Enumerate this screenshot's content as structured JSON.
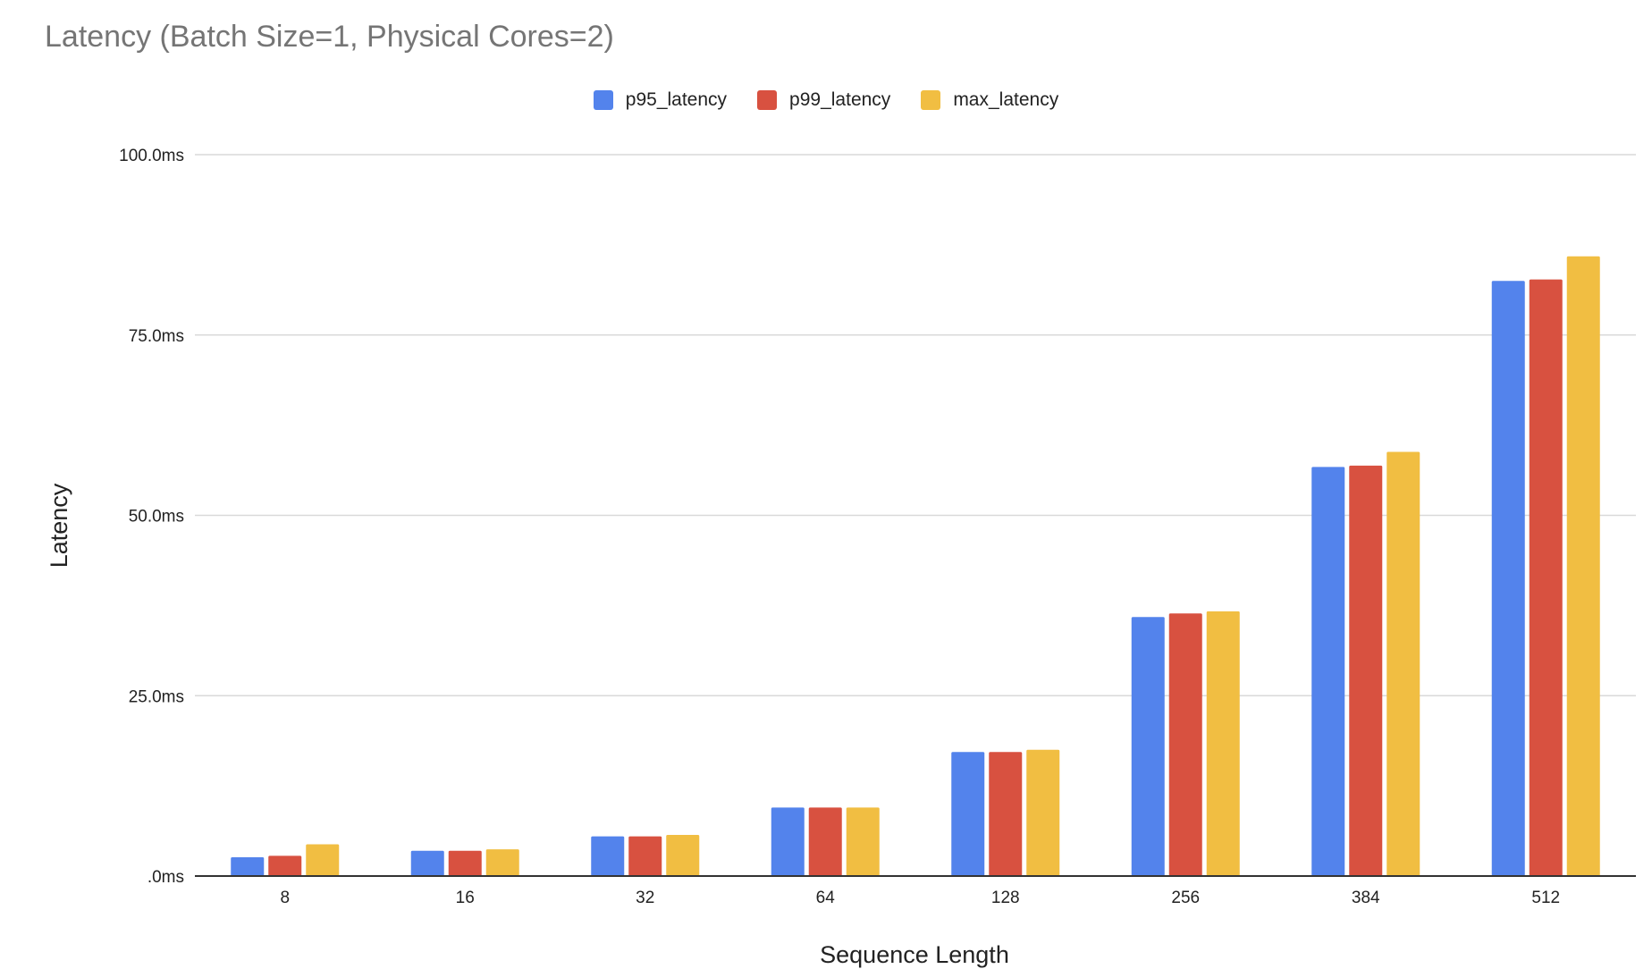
{
  "chart_data": {
    "type": "bar",
    "title": "Latency (Batch Size=1, Physical Cores=2)",
    "xlabel": "Sequence Length",
    "ylabel": "Latency",
    "ylim": [
      0,
      100
    ],
    "y_ticks": [
      0,
      25,
      50,
      75,
      100
    ],
    "y_tick_labels": [
      ".0ms",
      "25.0ms",
      "50.0ms",
      "75.0ms",
      "100.0ms"
    ],
    "grid": true,
    "legend_position": "top-center",
    "categories": [
      "8",
      "16",
      "32",
      "64",
      "128",
      "256",
      "384",
      "512"
    ],
    "series": [
      {
        "name": "p95_latency",
        "color": "#5383EC",
        "values": [
          2.6,
          3.5,
          5.5,
          9.5,
          17.2,
          35.9,
          56.7,
          82.5
        ]
      },
      {
        "name": "p99_latency",
        "color": "#D85140",
        "values": [
          2.8,
          3.5,
          5.5,
          9.5,
          17.2,
          36.4,
          56.9,
          82.7
        ]
      },
      {
        "name": "max_latency",
        "color": "#F1BE42",
        "values": [
          4.4,
          3.7,
          5.7,
          9.5,
          17.5,
          36.7,
          58.8,
          85.9
        ]
      }
    ]
  }
}
